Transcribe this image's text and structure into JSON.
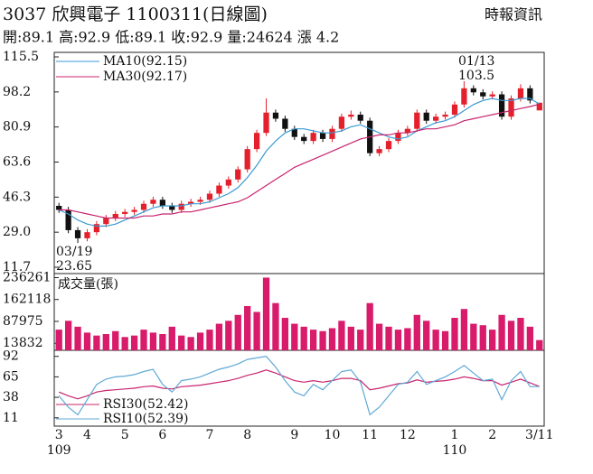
{
  "chart_data": [
    {
      "type": "candlestick",
      "title": "3037 欣興電子 1100311(日線圖)",
      "source": "時報資訊",
      "summary": "開:89.1 高:92.9 低:89.1 收:92.9 量:24624 漲 4.2",
      "categories": [
        "3",
        null,
        null,
        "4",
        null,
        null,
        null,
        "5",
        null,
        null,
        null,
        "6",
        null,
        null,
        null,
        null,
        "7",
        null,
        null,
        null,
        "8",
        null,
        null,
        null,
        null,
        "9",
        null,
        null,
        null,
        "10",
        null,
        null,
        null,
        "11",
        null,
        null,
        null,
        "12",
        null,
        null,
        null,
        null,
        "1",
        null,
        null,
        null,
        "2",
        null,
        null,
        null,
        null,
        "3/11"
      ],
      "categories_year": [
        "109",
        null,
        null,
        null,
        null,
        null,
        null,
        null,
        null,
        null,
        null,
        null,
        null,
        null,
        null,
        null,
        null,
        null,
        null,
        null,
        null,
        null,
        null,
        null,
        null,
        null,
        null,
        null,
        null,
        null,
        null,
        null,
        null,
        null,
        null,
        null,
        null,
        null,
        null,
        null,
        null,
        null,
        "110",
        null,
        null,
        null,
        null,
        null,
        null,
        null,
        null,
        null
      ],
      "open": [
        42,
        40,
        30,
        26,
        29,
        33,
        36,
        38,
        39,
        40,
        43,
        45,
        42,
        40,
        43,
        44,
        45,
        48,
        52,
        55,
        60,
        70,
        78,
        88,
        85,
        80,
        76,
        74,
        78,
        75,
        80,
        86,
        87,
        84,
        68,
        70,
        74,
        78,
        80,
        88,
        84,
        86,
        87,
        92,
        100,
        98,
        96,
        97,
        86,
        95,
        100,
        89.1
      ],
      "high": [
        43.5,
        41.5,
        31.5,
        30.5,
        34.5,
        37.5,
        39.5,
        40.5,
        41.5,
        44.5,
        46.5,
        46.5,
        43.5,
        44.5,
        45.5,
        46.5,
        49.5,
        53.5,
        56.5,
        61.5,
        71.5,
        79.5,
        95,
        89.5,
        86.5,
        81.5,
        77.5,
        79.5,
        79.5,
        81.5,
        87.5,
        89,
        88.5,
        85.5,
        71.5,
        75.5,
        79.5,
        81.5,
        89.5,
        89.5,
        87.5,
        88.5,
        93.5,
        103.5,
        101.5,
        99.5,
        98.5,
        98.5,
        96.5,
        102,
        101.5,
        92.9
      ],
      "low": [
        38.5,
        28.5,
        23.65,
        24.5,
        27.5,
        31.5,
        34.5,
        36.5,
        37.5,
        38.5,
        41.5,
        40.5,
        38.5,
        38.5,
        41.5,
        42.5,
        43.5,
        46.5,
        50.5,
        53.5,
        58.5,
        68.5,
        76.5,
        83.5,
        78.5,
        74.5,
        72.5,
        72.5,
        73.5,
        73.5,
        78.5,
        84.5,
        82.5,
        66.5,
        66.5,
        68.5,
        72.5,
        76.5,
        78.5,
        82.5,
        82.5,
        84.5,
        85.5,
        90.5,
        96.5,
        94.5,
        94.5,
        84.5,
        84.5,
        93.5,
        92.5,
        89.1
      ],
      "close": [
        40,
        30,
        26,
        29,
        33,
        36,
        38,
        39,
        40,
        43,
        45,
        42,
        40,
        43,
        44,
        45,
        48,
        52,
        55,
        60,
        70,
        78,
        88,
        85,
        80,
        76,
        74,
        78,
        75,
        80,
        86,
        87,
        84,
        68,
        70,
        74,
        78,
        80,
        88,
        84,
        86,
        87,
        92,
        100,
        98,
        96,
        97,
        86,
        95,
        100,
        94,
        92.9
      ],
      "up_color": "#e3202b",
      "down_color": "#111111",
      "series": [
        {
          "name": "MA10(92.15)",
          "color": "#3a9ad3",
          "values": [
            40,
            38,
            35,
            33,
            32,
            32,
            33,
            35,
            37,
            39,
            41,
            42,
            42,
            42,
            43,
            43,
            44,
            46,
            48,
            51,
            56,
            62,
            69,
            74,
            78,
            80,
            80,
            79,
            78,
            78,
            79,
            81,
            82,
            80,
            78,
            76,
            75,
            76,
            79,
            81,
            83,
            84,
            86,
            89,
            92,
            94,
            95,
            94,
            94,
            95,
            95,
            92.15
          ]
        },
        {
          "name": "MA30(92.17)",
          "color": "#c8246e",
          "values": [
            40,
            40,
            39,
            38,
            37,
            36,
            36,
            36,
            36,
            37,
            37,
            38,
            38,
            39,
            39,
            40,
            41,
            42,
            43,
            44,
            46,
            49,
            52,
            55,
            58,
            61,
            63,
            65,
            67,
            69,
            71,
            73,
            75,
            76,
            77,
            77,
            78,
            78,
            79,
            80,
            80,
            81,
            82,
            84,
            85,
            86,
            87,
            88,
            89,
            90,
            91,
            92.17
          ]
        }
      ],
      "annotations": [
        {
          "date": "01/13",
          "value": 103.5
        },
        {
          "date": "03/19",
          "value": 23.65
        }
      ],
      "ylim": [
        11.7,
        115.5
      ],
      "yticks": [
        11.7,
        {
          "value": 29,
          "label": "29.0"
        },
        46.3,
        63.6,
        80.9,
        98.2,
        115.5
      ]
    },
    {
      "type": "bar",
      "label": "成交量(張)",
      "color": "#d81b6a",
      "values": [
        60000,
        90000,
        70000,
        50000,
        40000,
        45000,
        55000,
        35000,
        40000,
        60000,
        50000,
        45000,
        70000,
        40000,
        35000,
        50000,
        60000,
        80000,
        90000,
        110000,
        140000,
        120000,
        236261,
        150000,
        100000,
        80000,
        70000,
        60000,
        55000,
        65000,
        90000,
        70000,
        60000,
        150000,
        80000,
        70000,
        60000,
        65000,
        110000,
        90000,
        60000,
        55000,
        100000,
        130000,
        80000,
        75000,
        60000,
        110000,
        90000,
        100000,
        70000,
        24624
      ],
      "ylim": [
        -10000,
        250000
      ],
      "yticks": [
        13832,
        87975,
        162118,
        236261
      ]
    },
    {
      "type": "line",
      "series": [
        {
          "name": "RSI30(52.42)",
          "color": "#c8246e",
          "values": [
            45,
            40,
            36,
            40,
            45,
            47,
            48,
            49,
            50,
            52,
            53,
            50,
            49,
            52,
            53,
            54,
            56,
            58,
            60,
            63,
            67,
            70,
            74,
            70,
            65,
            60,
            58,
            60,
            58,
            60,
            63,
            63,
            60,
            48,
            50,
            53,
            56,
            57,
            61,
            58,
            59,
            60,
            62,
            65,
            63,
            60,
            60,
            54,
            58,
            62,
            57,
            52.42
          ]
        },
        {
          "name": "RSI10(52.39)",
          "color": "#5fa9d6",
          "values": [
            40,
            25,
            15,
            35,
            55,
            62,
            65,
            66,
            68,
            72,
            75,
            55,
            45,
            60,
            62,
            65,
            70,
            75,
            78,
            82,
            88,
            90,
            92,
            78,
            60,
            45,
            40,
            55,
            48,
            60,
            72,
            74,
            58,
            15,
            25,
            40,
            55,
            58,
            72,
            55,
            60,
            65,
            72,
            80,
            70,
            60,
            62,
            35,
            60,
            72,
            52,
            52.39
          ]
        }
      ],
      "ylim": [
        0,
        100
      ],
      "yticks": [
        11,
        38,
        65,
        92
      ]
    }
  ]
}
